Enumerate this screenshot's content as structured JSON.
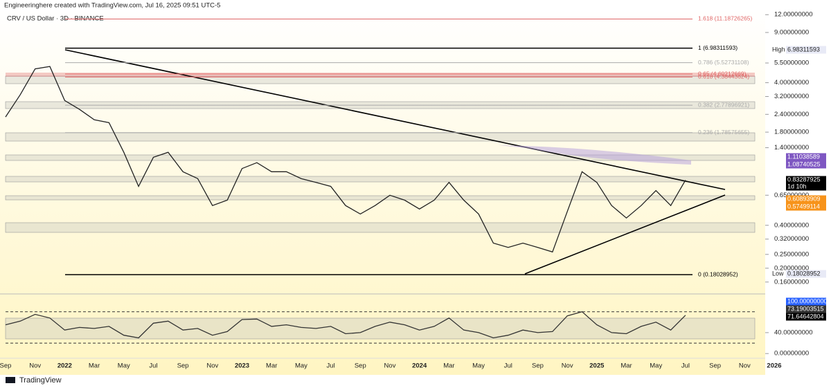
{
  "header": {
    "credit": "Engineeringhere created with TradingView.com, Jul 16, 2025 09:51 UTC-5"
  },
  "footer": {
    "brand": "TradingView"
  },
  "chart_data": [
    {
      "type": "line",
      "title": "CRV / US Dollar · 3D · BINANCE",
      "log_scale": true,
      "color": "#222222",
      "categories": [
        "Sep",
        null,
        "Nov",
        null,
        "2022",
        null,
        "Mar",
        null,
        "May",
        null,
        "Jul",
        null,
        "Sep",
        null,
        "Nov",
        null,
        "2023",
        null,
        "Mar",
        null,
        "May",
        null,
        "Jul",
        null,
        "Sep",
        null,
        "Nov",
        null,
        "2024",
        null,
        "Mar",
        null,
        "May",
        null,
        "Jul",
        null,
        "Sep",
        null,
        "Nov",
        null,
        "2025",
        null,
        "Mar",
        null,
        "May",
        null,
        "Jul",
        null,
        "Sep",
        null,
        "Nov",
        null,
        "2026"
      ],
      "values": [
        2.3,
        3.3,
        5.0,
        5.2,
        3.0,
        2.6,
        2.2,
        2.1,
        1.3,
        0.75,
        1.2,
        1.3,
        0.95,
        0.85,
        0.55,
        0.6,
        1.0,
        1.1,
        0.95,
        0.95,
        0.85,
        0.8,
        0.75,
        0.55,
        0.48,
        0.55,
        0.65,
        0.6,
        0.52,
        0.6,
        0.8,
        0.6,
        0.48,
        0.3,
        0.28,
        0.3,
        0.28,
        0.26,
        0.5,
        0.95,
        0.8,
        0.55,
        0.45,
        0.55,
        0.7,
        0.55,
        0.83,
        null,
        null,
        null,
        null,
        null,
        null
      ],
      "ylim": [
        0.132,
        13.3
      ],
      "yticks": [
        {
          "value": 12,
          "label": "12.00000000"
        },
        {
          "value": 9,
          "label": "9.00000000"
        },
        {
          "value": 5.5,
          "label": "5.50000000"
        },
        {
          "value": 4,
          "label": "4.00000000"
        },
        {
          "value": 3.2,
          "label": "3.20000000"
        },
        {
          "value": 2.4,
          "label": "2.40000000"
        },
        {
          "value": 1.8,
          "label": "1.80000000"
        },
        {
          "value": 1.4,
          "label": "1.40000000"
        },
        {
          "value": 0.65,
          "label": "0.65000000"
        },
        {
          "value": 0.4,
          "label": "0.40000000"
        },
        {
          "value": 0.32,
          "label": "0.32000000"
        },
        {
          "value": 0.25,
          "label": "0.25000000"
        },
        {
          "value": 0.2,
          "label": "0.20000000"
        },
        {
          "value": 0.16,
          "label": "0.16000000"
        }
      ],
      "fib_levels": [
        {
          "label": "1.618 (11.18726265)",
          "value": 11.18726265,
          "color": "#e06666"
        },
        {
          "label": "1 (6.98311593)",
          "value": 6.98311593,
          "color": "#000000"
        },
        {
          "label": "0.786 (5.52731108)",
          "value": 5.52731108,
          "color": "#aaaaaa"
        },
        {
          "label": "0.65 (4.60212669)",
          "value": 4.60212669,
          "color": "#e06666"
        },
        {
          "label": "0.618 (4.38443624)",
          "value": 4.38443624,
          "color": "#e06666"
        },
        {
          "label": "0.382 (2.77896921)",
          "value": 2.77896921,
          "color": "#aaaaaa"
        },
        {
          "label": "0.236 (1.78575655)",
          "value": 1.78575655,
          "color": "#aaaaaa"
        },
        {
          "label": "0 (0.18028952)",
          "value": 0.18028952,
          "color": "#000000"
        }
      ],
      "high": {
        "label": "High",
        "value": 6.98311593
      },
      "low": {
        "label": "Low",
        "value": 0.18028952
      },
      "badges": [
        {
          "text": "1.11038589",
          "color": "#7e57c2"
        },
        {
          "text": "1.08740525",
          "color": "#7e57c2"
        },
        {
          "text": "0.83287925",
          "color": "#000000"
        },
        {
          "text": "1d 10h",
          "color": "#000000"
        },
        {
          "text": "0.60893909",
          "color": "#f7931a"
        },
        {
          "text": "0.57499114",
          "color": "#f7931a"
        }
      ]
    },
    {
      "type": "line",
      "color": "#333333",
      "values": [
        55,
        62,
        75,
        68,
        45,
        50,
        48,
        52,
        35,
        30,
        58,
        62,
        45,
        48,
        35,
        42,
        65,
        66,
        52,
        55,
        50,
        48,
        52,
        38,
        40,
        52,
        60,
        55,
        45,
        52,
        68,
        45,
        40,
        30,
        35,
        45,
        40,
        42,
        72,
        80,
        55,
        40,
        38,
        52,
        60,
        45,
        73.19003515
      ],
      "ylim": [
        -9,
        110
      ],
      "yticks": [
        {
          "value": 40,
          "label": "40.00000000"
        },
        {
          "value": 0,
          "label": "0.00000000"
        }
      ],
      "levels": [
        80,
        20
      ],
      "badges": [
        {
          "text": "100.00000000",
          "color": "#2962ff"
        },
        {
          "text": "73.19003515",
          "color": "#333333"
        },
        {
          "text": "71.64642804",
          "color": "#000000"
        }
      ]
    }
  ]
}
